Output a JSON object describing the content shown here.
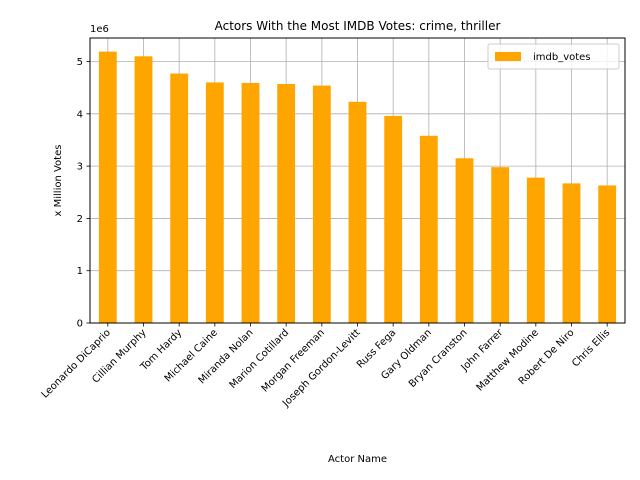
{
  "chart_data": {
    "type": "bar",
    "title": "Actors With the Most IMDB Votes: crime, thriller",
    "xlabel": "Actor Name",
    "ylabel": "x Million Votes",
    "offset_label": "1e6",
    "categories": [
      "Leonardo DiCaprio",
      "Cillian Murphy",
      "Tom Hardy",
      "Michael Caine",
      "Miranda Nolan",
      "Marion Cotillard",
      "Morgan Freeman",
      "Joseph Gordon-Levitt",
      "Russ Fega",
      "Gary Oldman",
      "Bryan Cranston",
      "John Farrer",
      "Matthew Modine",
      "Robert De Niro",
      "Chris Ellis"
    ],
    "series": [
      {
        "name": "imdb_votes",
        "color": "#ffa500",
        "values": [
          5190000,
          5100000,
          4770000,
          4600000,
          4590000,
          4570000,
          4540000,
          4230000,
          3960000,
          3580000,
          3150000,
          2980000,
          2780000,
          2670000,
          2630000
        ]
      }
    ],
    "yticks": [
      0,
      1,
      2,
      3,
      4,
      5
    ],
    "ylim": [
      0,
      5450000
    ],
    "grid": true,
    "legend": "top-right"
  }
}
